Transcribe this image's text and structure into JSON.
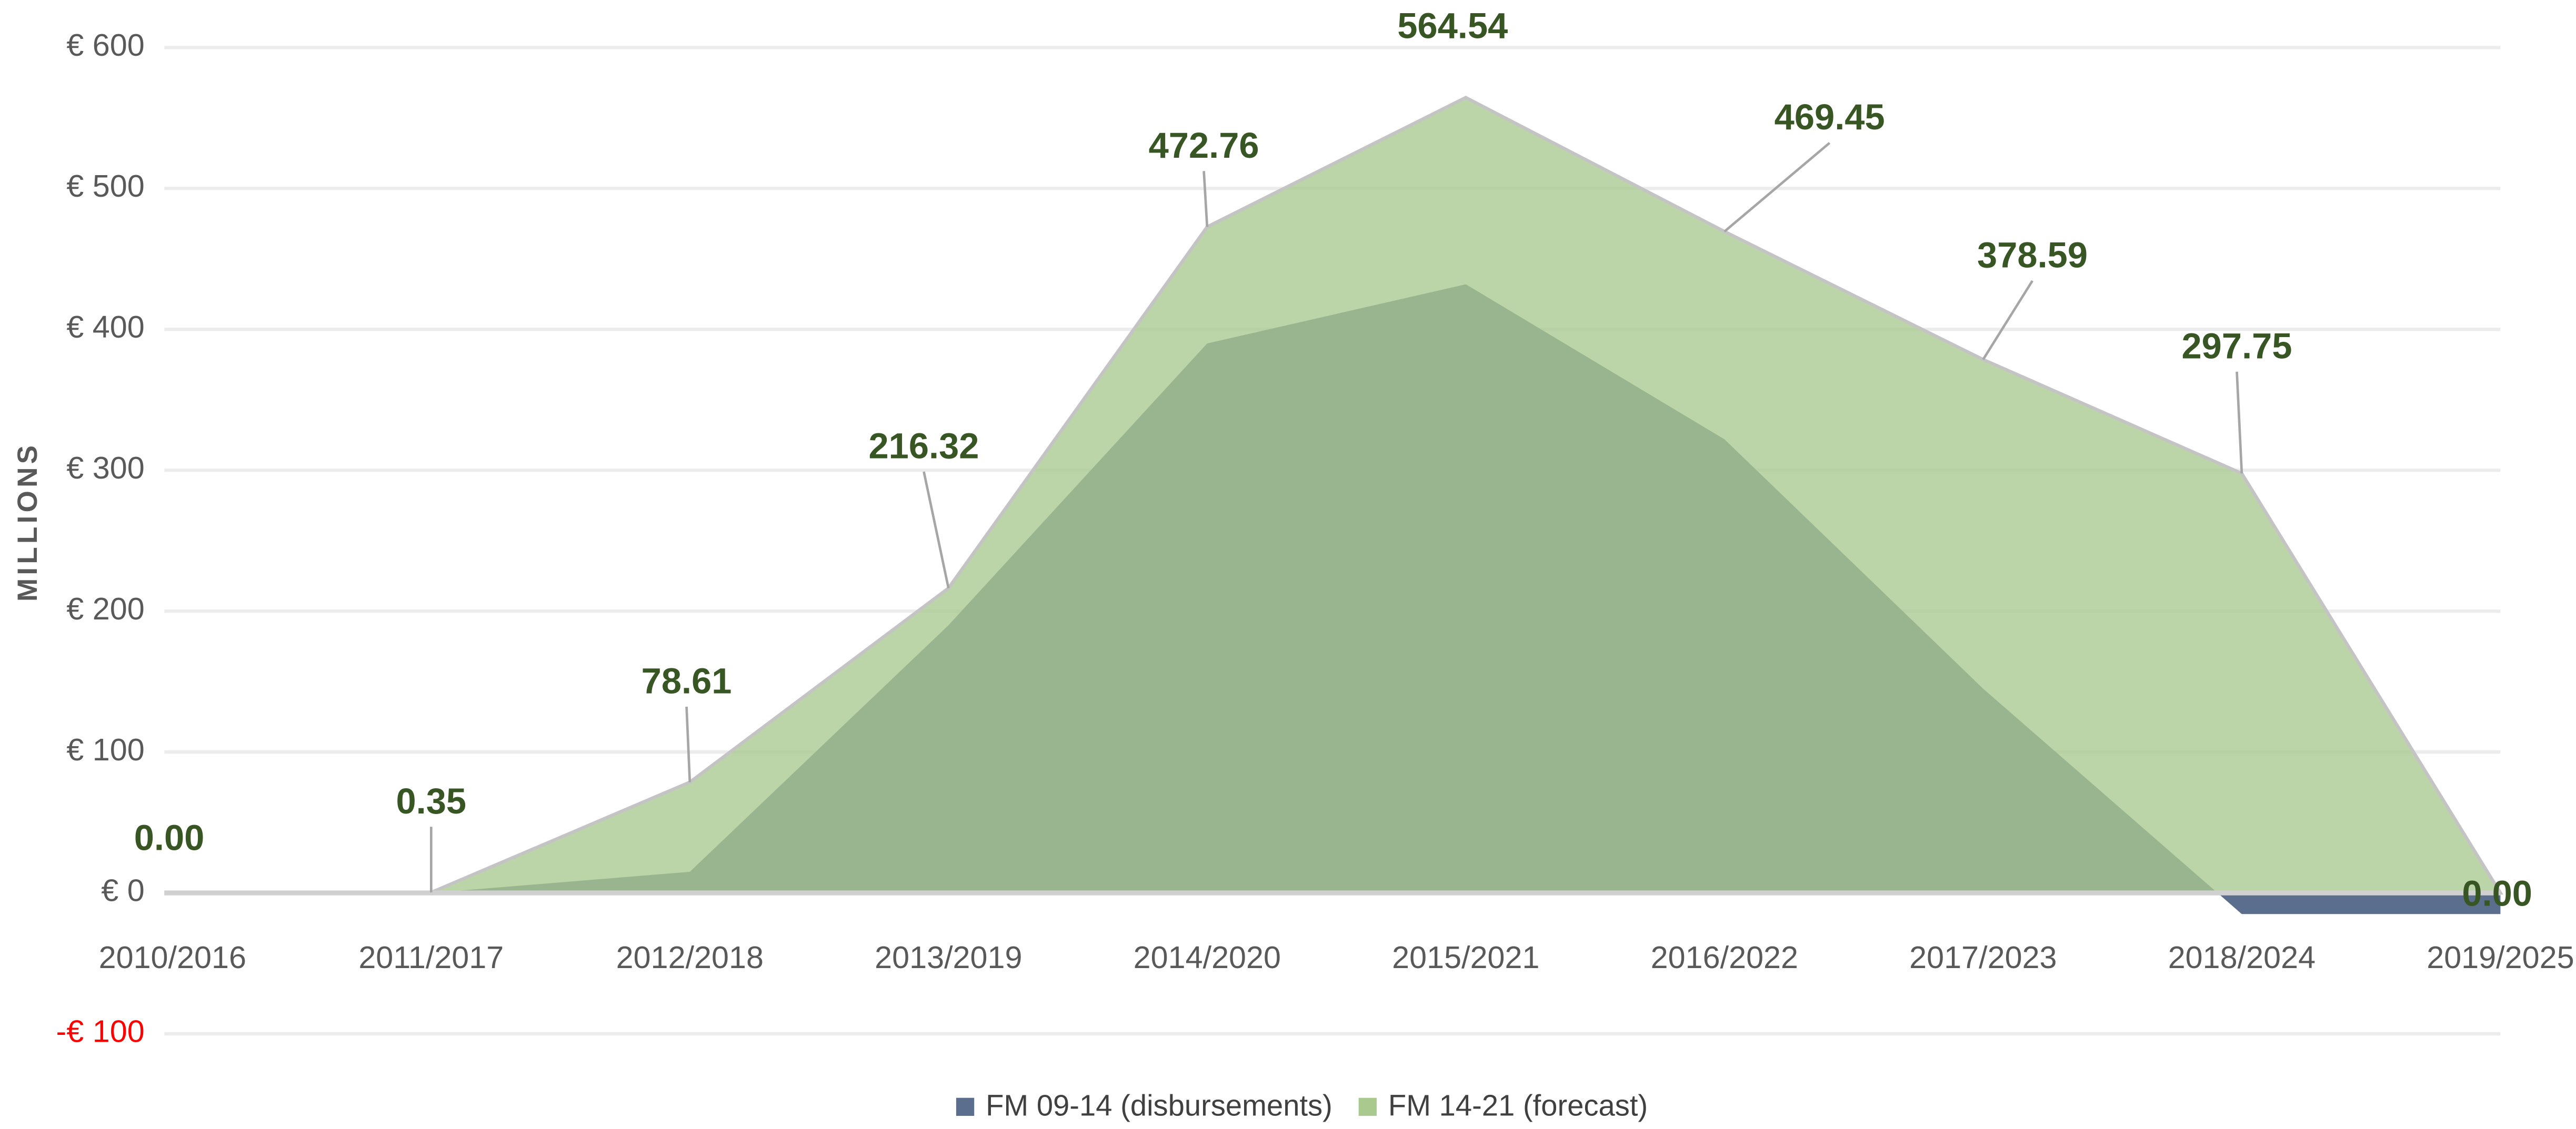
{
  "chart_data": {
    "type": "area",
    "y_axis_label": "MILLIONS",
    "categories": [
      "2010/2016",
      "2011/2017",
      "2012/2018",
      "2013/2019",
      "2014/2020",
      "2015/2021",
      "2016/2022",
      "2017/2023",
      "2018/2024",
      "2019/2025"
    ],
    "series": [
      {
        "name": "FM 09-14 (disbursements)",
        "color": "#5b6e8d",
        "values": [
          0,
          0,
          15,
          190,
          390,
          432,
          322,
          145,
          -15,
          -15
        ]
      },
      {
        "name": "FM 14-21 (forecast)",
        "color": "#a9c98f",
        "values": [
          0,
          0.35,
          78.61,
          216.32,
          472.76,
          564.54,
          469.45,
          378.59,
          297.75,
          0
        ],
        "value_labels": [
          "0.00",
          "0.35",
          "78.61",
          "216.32",
          "472.76",
          "564.54",
          "469.45",
          "378.59",
          "297.75",
          "0.00"
        ]
      }
    ],
    "ylim": [
      -100,
      600
    ],
    "yticks": [
      {
        "value": -100,
        "label": "-€ 100"
      },
      {
        "value": 0,
        "label": "€ 0"
      },
      {
        "value": 100,
        "label": "€ 100"
      },
      {
        "value": 200,
        "label": "€ 200"
      },
      {
        "value": 300,
        "label": "€ 300"
      },
      {
        "value": 400,
        "label": "€ 400"
      },
      {
        "value": 500,
        "label": "€ 500"
      },
      {
        "value": 600,
        "label": "€ 600"
      }
    ],
    "negative_tick_color": "#ff0000",
    "grid": true,
    "legend": "bottom"
  }
}
